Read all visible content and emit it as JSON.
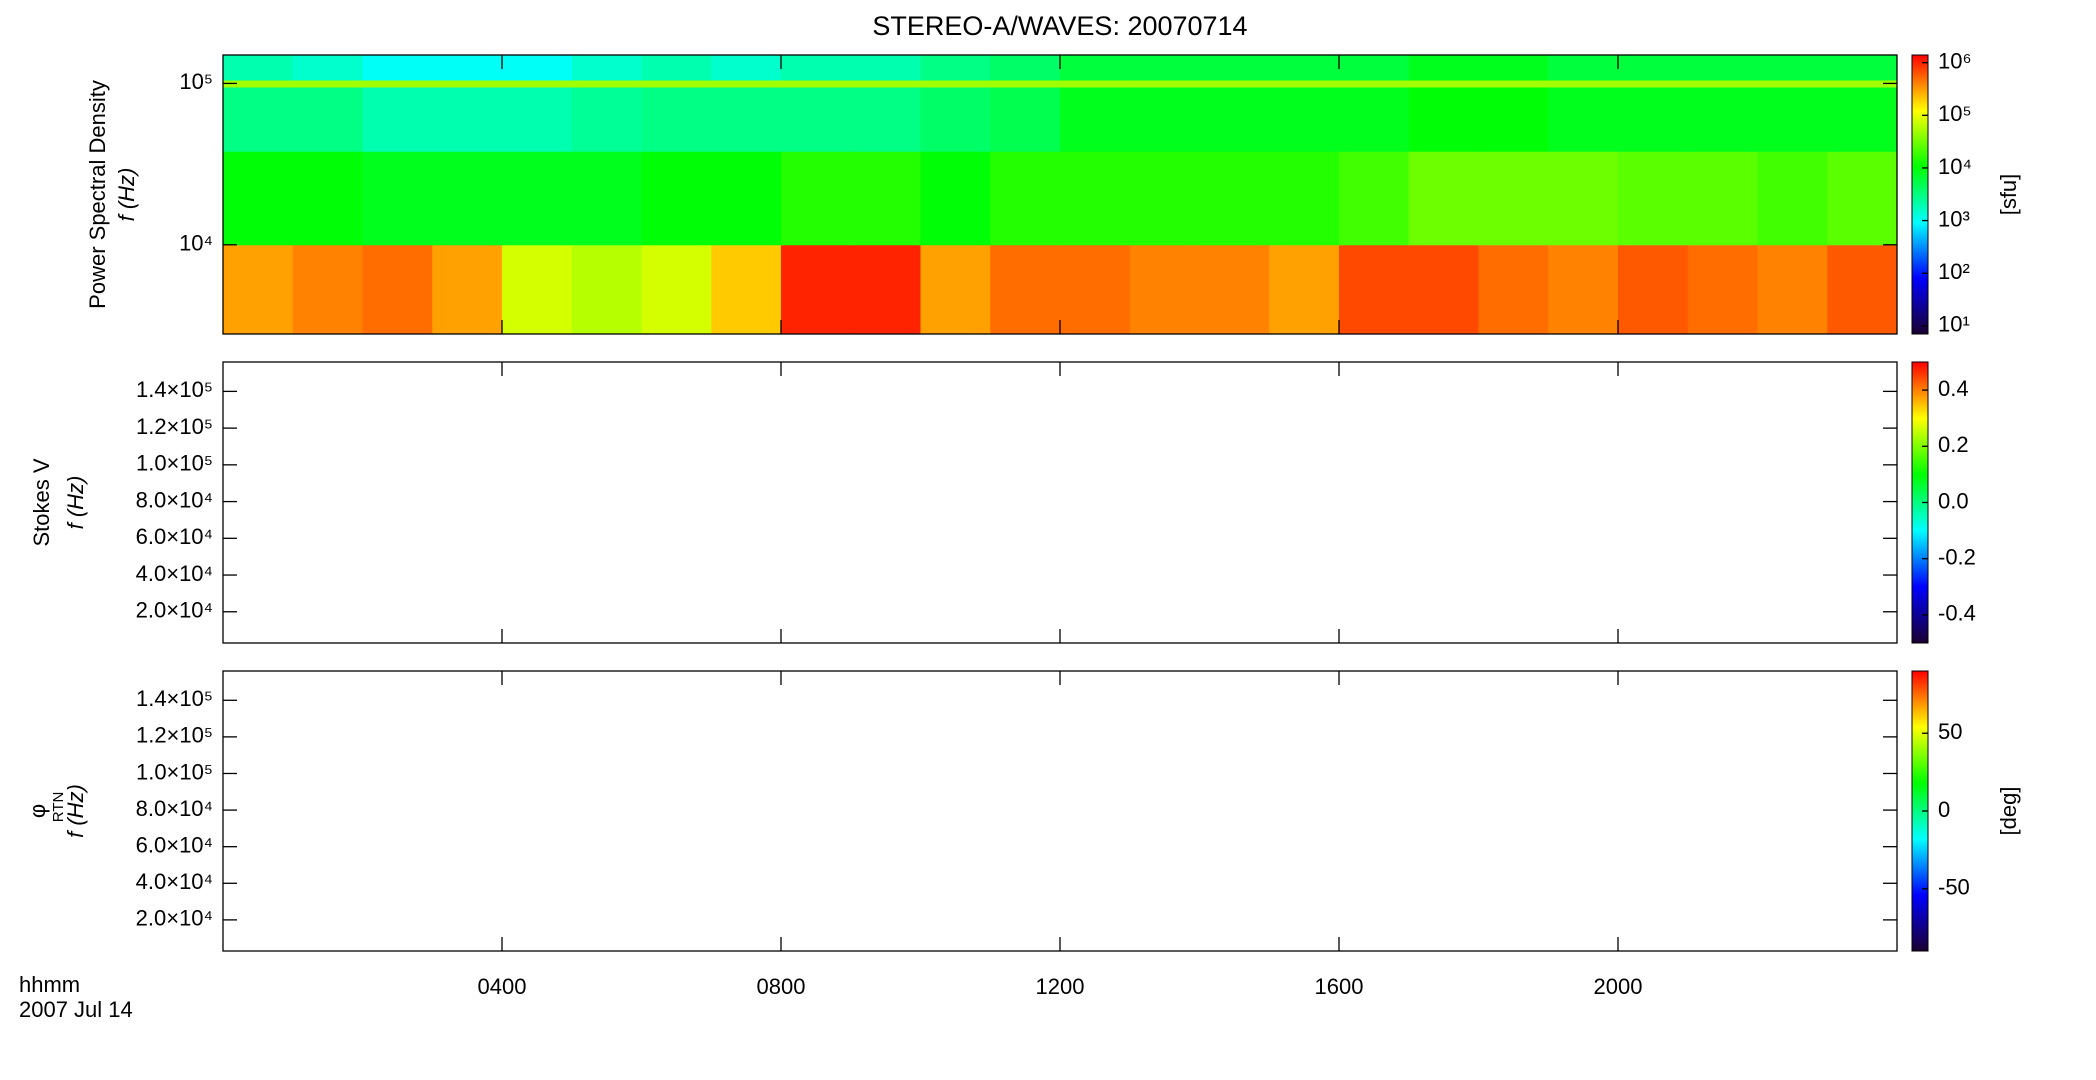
{
  "chart_data": {
    "title": "STEREO-A/WAVES: 20070714",
    "x_label": "hhmm",
    "date": "2007 Jul 14",
    "xlim": [
      0,
      24
    ],
    "xticks": [
      {
        "value": 4,
        "label": "0400"
      },
      {
        "value": 8,
        "label": "0800"
      },
      {
        "value": 12,
        "label": "1200"
      },
      {
        "value": 16,
        "label": "1600"
      },
      {
        "value": 20,
        "label": "2000"
      }
    ],
    "colormap": [
      "#1a0030",
      "#0000ff",
      "#00ffff",
      "#00ff00",
      "#ffff00",
      "#ff0000"
    ],
    "panels": [
      {
        "type": "heatmap",
        "ylabel": "Power Spectral Density",
        "ylabel2": "f (Hz)",
        "ylog": true,
        "ylim": [
          2800,
          150000
        ],
        "yticks": [
          {
            "value": 10000,
            "label": "10⁴"
          },
          {
            "value": 100000,
            "label": "10⁵"
          }
        ],
        "x_bins": [
          0,
          1,
          2,
          3,
          4,
          5,
          6,
          7,
          8,
          9,
          10,
          11,
          12,
          13,
          14,
          15,
          16,
          17,
          18,
          19,
          20,
          21,
          22,
          23,
          24
        ],
        "y_bins": [
          2800,
          10000,
          38000,
          95000,
          105000,
          150000
        ],
        "z": [
          [
            300000,
            400000,
            500000,
            300000,
            80000,
            60000,
            80000,
            200000,
            1000000,
            1000000,
            300000,
            500000,
            500000,
            400000,
            400000,
            300000,
            700000,
            700000,
            500000,
            400000,
            600000,
            500000,
            400000,
            600000
          ],
          [
            10000,
            10000,
            8000,
            8000,
            8000,
            8000,
            10000,
            10000,
            15000,
            15000,
            10000,
            15000,
            15000,
            15000,
            15000,
            15000,
            20000,
            30000,
            30000,
            30000,
            25000,
            25000,
            20000,
            25000
          ],
          [
            3000,
            3000,
            2000,
            2000,
            2000,
            2500,
            3000,
            3000,
            3000,
            3000,
            4000,
            5000,
            8000,
            8000,
            8000,
            8000,
            8000,
            10000,
            10000,
            8000,
            8000,
            8000,
            8000,
            8000
          ],
          [
            50000,
            50000,
            50000,
            50000,
            50000,
            50000,
            50000,
            50000,
            50000,
            50000,
            50000,
            50000,
            50000,
            50000,
            50000,
            50000,
            50000,
            50000,
            50000,
            50000,
            50000,
            50000,
            50000,
            50000
          ],
          [
            2000,
            1500,
            1000,
            1000,
            1000,
            1500,
            2000,
            1500,
            2000,
            2000,
            3000,
            4000,
            6000,
            6000,
            6000,
            6000,
            6000,
            8000,
            8000,
            6000,
            6000,
            6000,
            6000,
            6000
          ]
        ],
        "clog": true,
        "clim": [
          7,
          1400000
        ],
        "cticks": [
          {
            "value": 10,
            "label": "10¹"
          },
          {
            "value": 100,
            "label": "10²"
          },
          {
            "value": 1000,
            "label": "10³"
          },
          {
            "value": 10000,
            "label": "10⁴"
          },
          {
            "value": 100000,
            "label": "10⁵"
          },
          {
            "value": 1000000,
            "label": "10⁶"
          }
        ],
        "clabel": "[sfu]"
      },
      {
        "type": "heatmap",
        "ylabel": "Stokes V",
        "ylabel2": "f (Hz)",
        "ylog": false,
        "ylim": [
          3000,
          156000
        ],
        "yticks": [
          {
            "value": 20000,
            "label": "2.0×10⁴"
          },
          {
            "value": 40000,
            "label": "4.0×10⁴"
          },
          {
            "value": 60000,
            "label": "6.0×10⁴"
          },
          {
            "value": 80000,
            "label": "8.0×10⁴"
          },
          {
            "value": 100000,
            "label": "1.0×10⁵"
          },
          {
            "value": 120000,
            "label": "1.2×10⁵"
          },
          {
            "value": 140000,
            "label": "1.4×10⁵"
          }
        ],
        "clog": false,
        "clim": [
          -0.5,
          0.5
        ],
        "cticks": [
          -0.4,
          -0.2,
          {
            "value": 0,
            "label": "0.0"
          },
          0.2,
          0.4
        ]
      },
      {
        "type": "heatmap",
        "ylabel_symbol": "φ",
        "ylabel_subscript": "RTN",
        "ylabel2": "f (Hz)",
        "ylog": false,
        "ylim": [
          3000,
          156000
        ],
        "yticks": [
          {
            "value": 20000,
            "label": "2.0×10⁴"
          },
          {
            "value": 40000,
            "label": "4.0×10⁴"
          },
          {
            "value": 60000,
            "label": "6.0×10⁴"
          },
          {
            "value": 80000,
            "label": "8.0×10⁴"
          },
          {
            "value": 100000,
            "label": "1.0×10⁵"
          },
          {
            "value": 120000,
            "label": "1.2×10⁵"
          },
          {
            "value": 140000,
            "label": "1.4×10⁵"
          }
        ],
        "clog": false,
        "clim": [
          -90,
          90
        ],
        "cticks": [
          -50,
          0,
          50
        ],
        "clabel": "[deg]"
      }
    ]
  }
}
